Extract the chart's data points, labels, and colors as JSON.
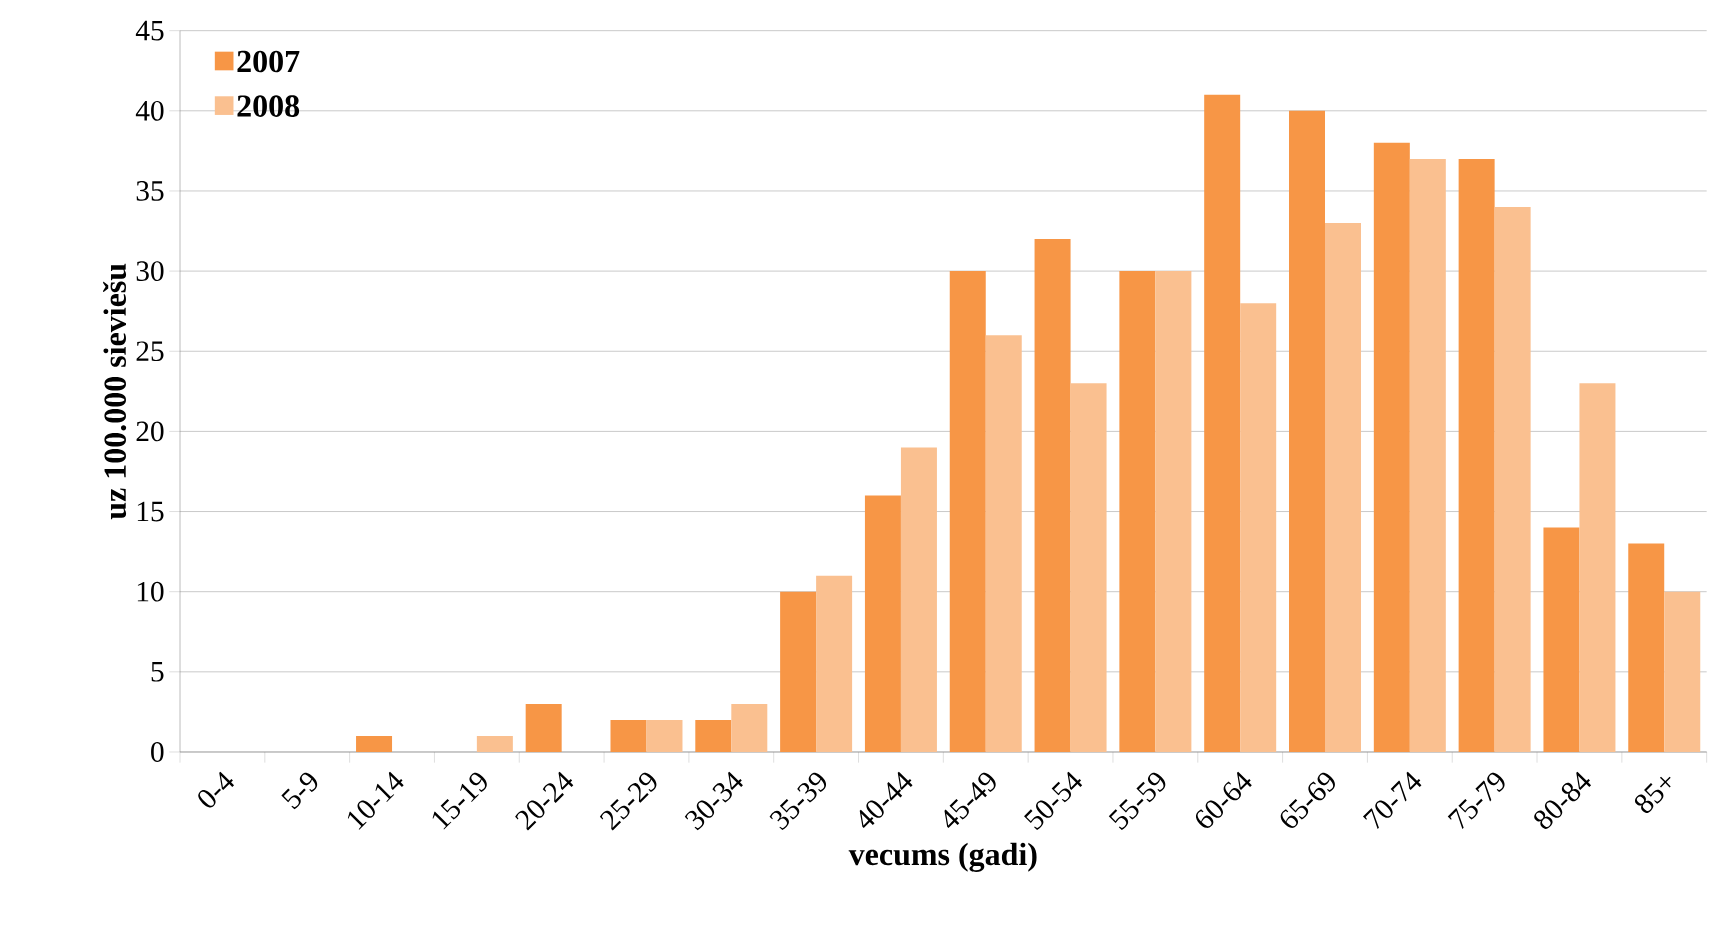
{
  "chart_data": {
    "type": "bar",
    "xlabel": "vecums (gadi)",
    "ylabel": "uz 100.000 sieviešu",
    "categories": [
      "0-4",
      "5-9",
      "10-14",
      "15-19",
      "20-24",
      "25-29",
      "30-34",
      "35-39",
      "40-44",
      "45-49",
      "50-54",
      "55-59",
      "60-64",
      "65-69",
      "70-74",
      "75-79",
      "80-84",
      "85+"
    ],
    "series": [
      {
        "name": "2007",
        "color": "#f79646",
        "values": [
          0,
          0,
          1,
          0,
          3,
          2,
          2,
          10,
          16,
          30,
          32,
          30,
          41,
          40,
          38,
          37,
          14,
          13
        ]
      },
      {
        "name": "2008",
        "color": "#fac090",
        "values": [
          0,
          0,
          0,
          1,
          0,
          2,
          3,
          11,
          19,
          26,
          23,
          30,
          28,
          33,
          37,
          34,
          23,
          10
        ]
      }
    ],
    "ylim": [
      0,
      45
    ],
    "yticks": [
      0,
      5,
      10,
      15,
      20,
      25,
      30,
      35,
      40,
      45
    ],
    "grid": "y",
    "legend": "top left"
  }
}
